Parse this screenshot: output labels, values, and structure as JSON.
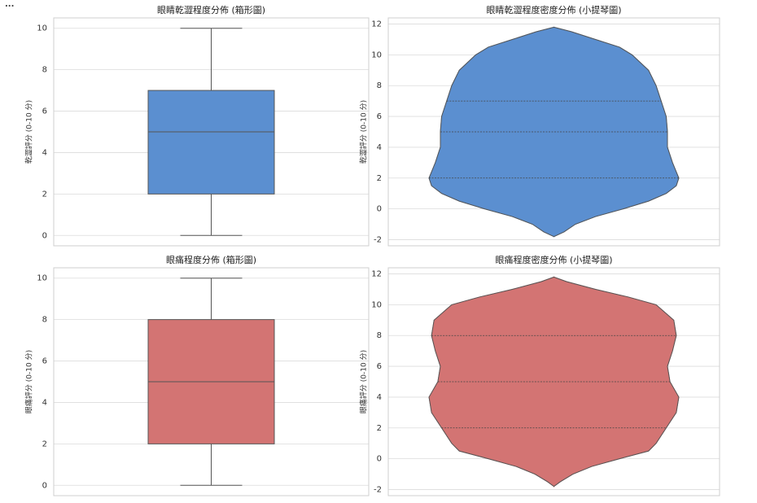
{
  "menu": "...",
  "chart_data": [
    {
      "type": "box",
      "title": "眼睛乾澀程度分佈 (箱形圖)",
      "ylabel": "乾澀評分 (0-10 分)",
      "color": "#5b8fd0",
      "box": {
        "whisker_low": 0,
        "q1": 2,
        "median": 5,
        "q3": 7,
        "whisker_high": 10
      },
      "ylim": [
        -0.5,
        10.5
      ],
      "yticks": [
        0,
        2,
        4,
        6,
        8,
        10
      ],
      "grid": true
    },
    {
      "type": "violin",
      "title": "眼睛乾澀程度密度分佈 (小提琴圖)",
      "ylabel": "乾澀評分 (0-10 分)",
      "color": "#5b8fd0",
      "density": {
        "y": [
          -1.8,
          -1.5,
          -1,
          -0.5,
          0,
          0.5,
          1,
          1.5,
          2,
          3,
          4,
          5,
          6,
          7,
          8,
          9,
          10,
          10.5,
          11,
          11.5,
          11.8
        ],
        "values": [
          0,
          0.08,
          0.17,
          0.33,
          0.55,
          0.75,
          0.89,
          0.97,
          0.99,
          0.94,
          0.9,
          0.9,
          0.89,
          0.85,
          0.81,
          0.75,
          0.62,
          0.52,
          0.33,
          0.14,
          0
        ]
      },
      "quartiles": [
        2,
        5,
        7
      ],
      "ylim": [
        -2.4,
        12.4
      ],
      "yticks": [
        -2,
        0,
        2,
        4,
        6,
        8,
        10,
        12
      ],
      "grid": true
    },
    {
      "type": "box",
      "title": "眼痛程度分佈 (箱形圖)",
      "ylabel": "眼痛評分 (0-10 分)",
      "color": "#d37473",
      "box": {
        "whisker_low": 0,
        "q1": 2,
        "median": 5,
        "q3": 8,
        "whisker_high": 10
      },
      "ylim": [
        -0.5,
        10.5
      ],
      "yticks": [
        0,
        2,
        4,
        6,
        8,
        10
      ],
      "grid": true
    },
    {
      "type": "violin",
      "title": "眼痛程度密度分佈 (小提琴圖)",
      "ylabel": "眼痛評分 (0-10 分)",
      "color": "#d37473",
      "density": {
        "y": [
          -1.8,
          -1.5,
          -1,
          -0.5,
          0,
          0.5,
          1,
          2,
          3,
          4,
          5,
          6,
          7,
          8,
          9,
          10,
          10.5,
          11,
          11.5,
          11.8
        ],
        "values": [
          0,
          0.05,
          0.15,
          0.3,
          0.52,
          0.75,
          0.81,
          0.89,
          0.97,
          0.99,
          0.92,
          0.9,
          0.94,
          0.97,
          0.95,
          0.81,
          0.59,
          0.33,
          0.1,
          0
        ]
      },
      "quartiles": [
        2,
        5,
        8
      ],
      "ylim": [
        -2.4,
        12.4
      ],
      "yticks": [
        -2,
        0,
        2,
        4,
        6,
        8,
        10,
        12
      ],
      "grid": true
    }
  ]
}
